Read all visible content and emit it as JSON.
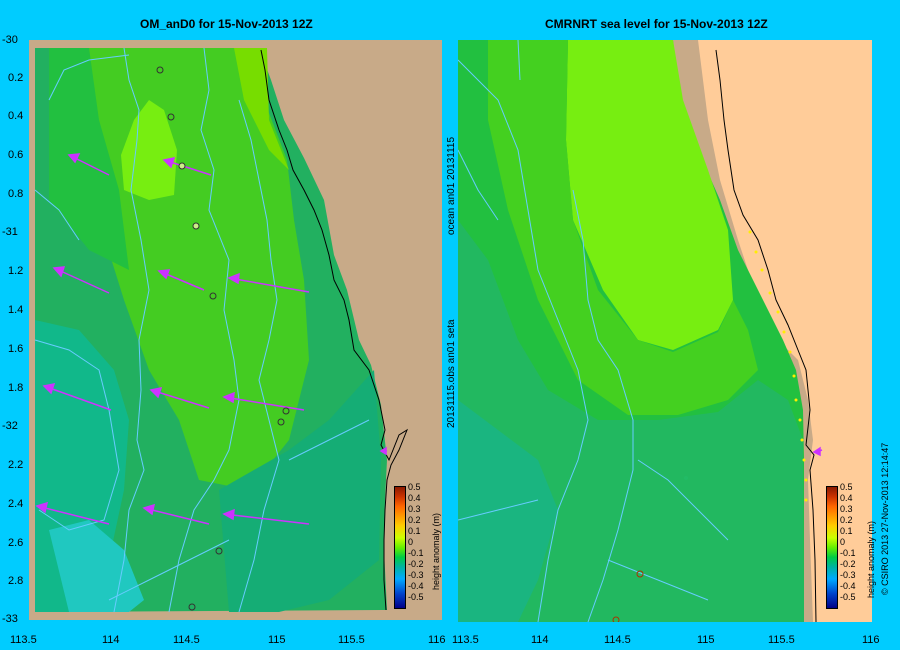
{
  "left_panel": {
    "title": "OM_anD0 for 15-Nov-2013 12Z",
    "y_ticks": [
      "-30",
      "0.2",
      "0.4",
      "0.6",
      "0.8",
      "-31",
      "1.2",
      "1.4",
      "1.6",
      "1.8",
      "-32",
      "2.2",
      "2.4",
      "2.6",
      "2.8",
      "-33"
    ],
    "x_ticks": [
      "113.5",
      "114",
      "114.5",
      "115",
      "115.5",
      "116"
    ]
  },
  "right_panel": {
    "title": "CMRNRT sea level  for 15-Nov-2013 12Z",
    "x_ticks": [
      "113.5",
      "114",
      "114.5",
      "115",
      "115.5",
      "116"
    ]
  },
  "side_labels": {
    "run_label": "20131115.obs  an01  seta",
    "ocean_label": "ocean  an01  20131115",
    "credit": "© CSIRO 2013    27-Nov-2013 12:14:47"
  },
  "colorbar": {
    "label": "height anomaly (m)",
    "ticks": [
      "0.5",
      "0.4",
      "0.3",
      "0.2",
      "0.1",
      "0",
      "-0.1",
      "-0.2",
      "-0.3",
      "-0.4",
      "-0.5"
    ],
    "colors": [
      "#8b1a00",
      "#cc3300",
      "#ff6600",
      "#ff9900",
      "#ffcc00",
      "#ccff00",
      "#66ee00",
      "#00cc44",
      "#00b3a0",
      "#00aaff",
      "#0044cc",
      "#000088"
    ]
  },
  "colors": {
    "background": "#00ccff",
    "land": "#ffcc99",
    "shelf": "#c8aa88",
    "arrow": "#cc33ff",
    "contour": "#66ccff"
  }
}
